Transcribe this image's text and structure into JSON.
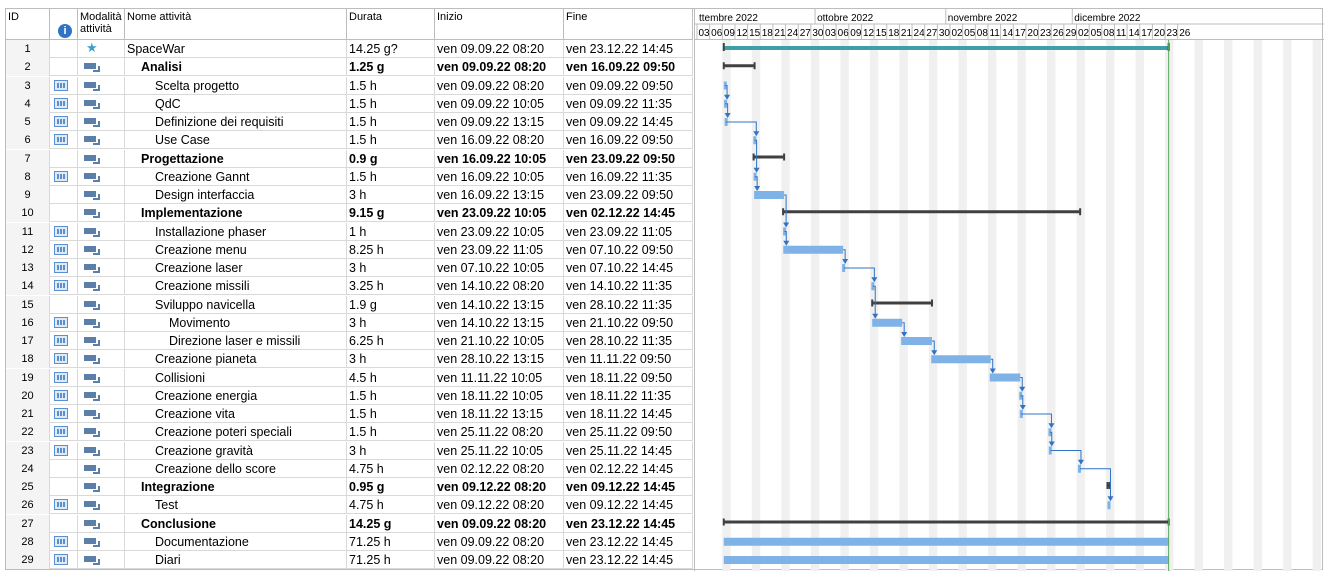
{
  "columns": {
    "id": "ID",
    "mode": "Modalità attività",
    "name": "Nome attività",
    "duration": "Durata",
    "start": "Inizio",
    "end": "Fine"
  },
  "info_icon": "i",
  "timeline": {
    "months": [
      "ttembre 2022",
      "ottobre 2022",
      "novembre 2022",
      "dicembre 2022"
    ],
    "days": [
      "03",
      "06",
      "09",
      "12",
      "15",
      "18",
      "21",
      "24",
      "27",
      "30",
      "03",
      "06",
      "09",
      "12",
      "15",
      "18",
      "21",
      "24",
      "27",
      "30",
      "02",
      "05",
      "08",
      "11",
      "14",
      "17",
      "20",
      "23",
      "26",
      "29",
      "02",
      "05",
      "08",
      "11",
      "14",
      "17",
      "20",
      "23",
      "26"
    ]
  },
  "tasks": [
    {
      "id": "1",
      "name": "SpaceWar",
      "duration": "14.25 g?",
      "start": "ven 09.09.22 08:20",
      "end": "ven 23.12.22 14:45",
      "level": 0,
      "bold": false,
      "mode": "manual",
      "info": false
    },
    {
      "id": "2",
      "name": "Analisi",
      "duration": "1.25 g",
      "start": "ven 09.09.22 08:20",
      "end": "ven 16.09.22 09:50",
      "level": 1,
      "bold": true,
      "mode": "auto",
      "info": false
    },
    {
      "id": "3",
      "name": "Scelta progetto",
      "duration": "1.5 h",
      "start": "ven 09.09.22 08:20",
      "end": "ven 09.09.22 09:50",
      "level": 2,
      "bold": false,
      "mode": "auto",
      "info": true
    },
    {
      "id": "4",
      "name": "QdC",
      "duration": "1.5 h",
      "start": "ven 09.09.22 10:05",
      "end": "ven 09.09.22 11:35",
      "level": 2,
      "bold": false,
      "mode": "auto",
      "info": true
    },
    {
      "id": "5",
      "name": "Definizione dei requisiti",
      "duration": "1.5 h",
      "start": "ven 09.09.22 13:15",
      "end": "ven 09.09.22 14:45",
      "level": 2,
      "bold": false,
      "mode": "auto",
      "info": true
    },
    {
      "id": "6",
      "name": "Use Case",
      "duration": "1.5 h",
      "start": "ven 16.09.22 08:20",
      "end": "ven 16.09.22 09:50",
      "level": 2,
      "bold": false,
      "mode": "auto",
      "info": true
    },
    {
      "id": "7",
      "name": "Progettazione",
      "duration": "0.9 g",
      "start": "ven 16.09.22 10:05",
      "end": "ven 23.09.22 09:50",
      "level": 1,
      "bold": true,
      "mode": "auto",
      "info": false
    },
    {
      "id": "8",
      "name": "Creazione Gannt",
      "duration": "1.5 h",
      "start": "ven 16.09.22 10:05",
      "end": "ven 16.09.22 11:35",
      "level": 2,
      "bold": false,
      "mode": "auto",
      "info": true
    },
    {
      "id": "9",
      "name": "Design interfaccia",
      "duration": "3 h",
      "start": "ven 16.09.22 13:15",
      "end": "ven 23.09.22 09:50",
      "level": 2,
      "bold": false,
      "mode": "auto",
      "info": false
    },
    {
      "id": "10",
      "name": "Implementazione",
      "duration": "9.15 g",
      "start": "ven 23.09.22 10:05",
      "end": "ven 02.12.22 14:45",
      "level": 1,
      "bold": true,
      "mode": "auto",
      "info": false
    },
    {
      "id": "11",
      "name": "Installazione phaser",
      "duration": "1 h",
      "start": "ven 23.09.22 10:05",
      "end": "ven 23.09.22 11:05",
      "level": 2,
      "bold": false,
      "mode": "auto",
      "info": true
    },
    {
      "id": "12",
      "name": "Creazione menu",
      "duration": "8.25 h",
      "start": "ven 23.09.22 11:05",
      "end": "ven 07.10.22 09:50",
      "level": 2,
      "bold": false,
      "mode": "auto",
      "info": true
    },
    {
      "id": "13",
      "name": "Creazione laser",
      "duration": "3 h",
      "start": "ven 07.10.22 10:05",
      "end": "ven 07.10.22 14:45",
      "level": 2,
      "bold": false,
      "mode": "auto",
      "info": true
    },
    {
      "id": "14",
      "name": "Creazione missili",
      "duration": "3.25 h",
      "start": "ven 14.10.22 08:20",
      "end": "ven 14.10.22 11:35",
      "level": 2,
      "bold": false,
      "mode": "auto",
      "info": true
    },
    {
      "id": "15",
      "name": "Sviluppo navicella",
      "duration": "1.9 g",
      "start": "ven 14.10.22 13:15",
      "end": "ven 28.10.22 11:35",
      "level": 2,
      "bold": false,
      "mode": "auto",
      "info": false
    },
    {
      "id": "16",
      "name": "Movimento",
      "duration": "3 h",
      "start": "ven 14.10.22 13:15",
      "end": "ven 21.10.22 09:50",
      "level": 3,
      "bold": false,
      "mode": "auto",
      "info": true
    },
    {
      "id": "17",
      "name": "Direzione laser e missili",
      "duration": "6.25 h",
      "start": "ven 21.10.22 10:05",
      "end": "ven 28.10.22 11:35",
      "level": 3,
      "bold": false,
      "mode": "auto",
      "info": true
    },
    {
      "id": "18",
      "name": "Creazione pianeta",
      "duration": "3 h",
      "start": "ven 28.10.22 13:15",
      "end": "ven 11.11.22 09:50",
      "level": 2,
      "bold": false,
      "mode": "auto",
      "info": true
    },
    {
      "id": "19",
      "name": "Collisioni",
      "duration": "4.5 h",
      "start": "ven 11.11.22 10:05",
      "end": "ven 18.11.22 09:50",
      "level": 2,
      "bold": false,
      "mode": "auto",
      "info": true
    },
    {
      "id": "20",
      "name": "Creazione energia",
      "duration": "1.5 h",
      "start": "ven 18.11.22 10:05",
      "end": "ven 18.11.22 11:35",
      "level": 2,
      "bold": false,
      "mode": "auto",
      "info": true
    },
    {
      "id": "21",
      "name": "Creazione vita",
      "duration": "1.5 h",
      "start": "ven 18.11.22 13:15",
      "end": "ven 18.11.22 14:45",
      "level": 2,
      "bold": false,
      "mode": "auto",
      "info": true
    },
    {
      "id": "22",
      "name": "Creazione poteri speciali",
      "duration": "1.5 h",
      "start": "ven 25.11.22 08:20",
      "end": "ven 25.11.22 09:50",
      "level": 2,
      "bold": false,
      "mode": "auto",
      "info": true
    },
    {
      "id": "23",
      "name": "Creazione gravità",
      "duration": "3 h",
      "start": "ven 25.11.22 10:05",
      "end": "ven 25.11.22 14:45",
      "level": 2,
      "bold": false,
      "mode": "auto",
      "info": true
    },
    {
      "id": "24",
      "name": "Creazione dello score",
      "duration": "4.75 h",
      "start": "ven 02.12.22 08:20",
      "end": "ven 02.12.22 14:45",
      "level": 2,
      "bold": false,
      "mode": "auto",
      "info": false
    },
    {
      "id": "25",
      "name": "Integrazione",
      "duration": "0.95 g",
      "start": "ven 09.12.22 08:20",
      "end": "ven 09.12.22 14:45",
      "level": 1,
      "bold": true,
      "mode": "auto",
      "info": false
    },
    {
      "id": "26",
      "name": "Test",
      "duration": "4.75 h",
      "start": "ven 09.12.22 08:20",
      "end": "ven 09.12.22 14:45",
      "level": 2,
      "bold": false,
      "mode": "auto",
      "info": true
    },
    {
      "id": "27",
      "name": "Conclusione",
      "duration": "14.25 g",
      "start": "ven 09.09.22 08:20",
      "end": "ven 23.12.22 14:45",
      "level": 1,
      "bold": true,
      "mode": "auto",
      "info": false
    },
    {
      "id": "28",
      "name": "Documentazione",
      "duration": "71.25 h",
      "start": "ven 09.09.22 08:20",
      "end": "ven 23.12.22 14:45",
      "level": 2,
      "bold": false,
      "mode": "auto",
      "info": true
    },
    {
      "id": "29",
      "name": "Diari",
      "duration": "71.25 h",
      "start": "ven 09.09.22 08:20",
      "end": "ven 23.12.22 14:45",
      "level": 2,
      "bold": false,
      "mode": "auto",
      "info": true
    }
  ],
  "colors": {
    "summary_bar": "#404040",
    "task_bar": "#7fb2e6",
    "project_bar": "#3f9fa8",
    "link_arrow": "#2f74c4",
    "weekend_shade": "#f0f0f0",
    "today_line": "#5aa85a"
  }
}
